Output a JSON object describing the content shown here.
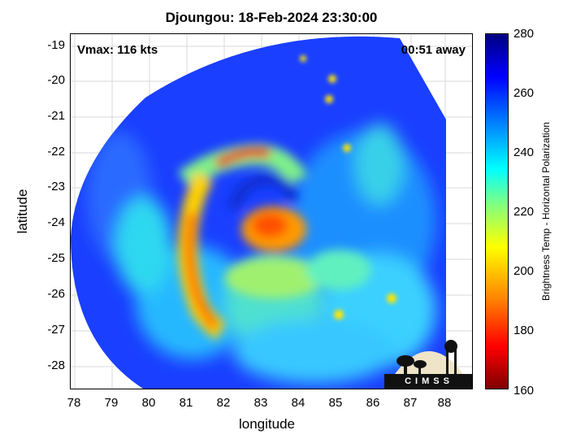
{
  "title": "Djoungou: 18-Feb-2024 23:30:00",
  "vmax_text": "Vmax: 116 kts",
  "time_offset_text": "00:51 away",
  "xlabel": "longitude",
  "ylabel": "latitude",
  "colorbar": {
    "title": "Brightness Temp - Horizontal Polarization",
    "ticks": [
      "280",
      "260",
      "240",
      "220",
      "200",
      "180",
      "160"
    ],
    "range": [
      160,
      280
    ]
  },
  "logo_text": "CIMSS",
  "chart_data": {
    "type": "heatmap",
    "xlim": [
      77.8,
      88.6
    ],
    "ylim": [
      -28.6,
      -18.6
    ],
    "xticks": [
      "78",
      "79",
      "80",
      "81",
      "82",
      "83",
      "84",
      "85",
      "86",
      "87",
      "88"
    ],
    "yticks": [
      "-19",
      "-20",
      "-21",
      "-22",
      "-23",
      "-24",
      "-25",
      "-26",
      "-27",
      "-28"
    ],
    "grid": true
  },
  "colors": {
    "background_swath_blue": "#1a3fff",
    "eyewall_red": "#e01010",
    "core_orange": "#ff7a00"
  }
}
